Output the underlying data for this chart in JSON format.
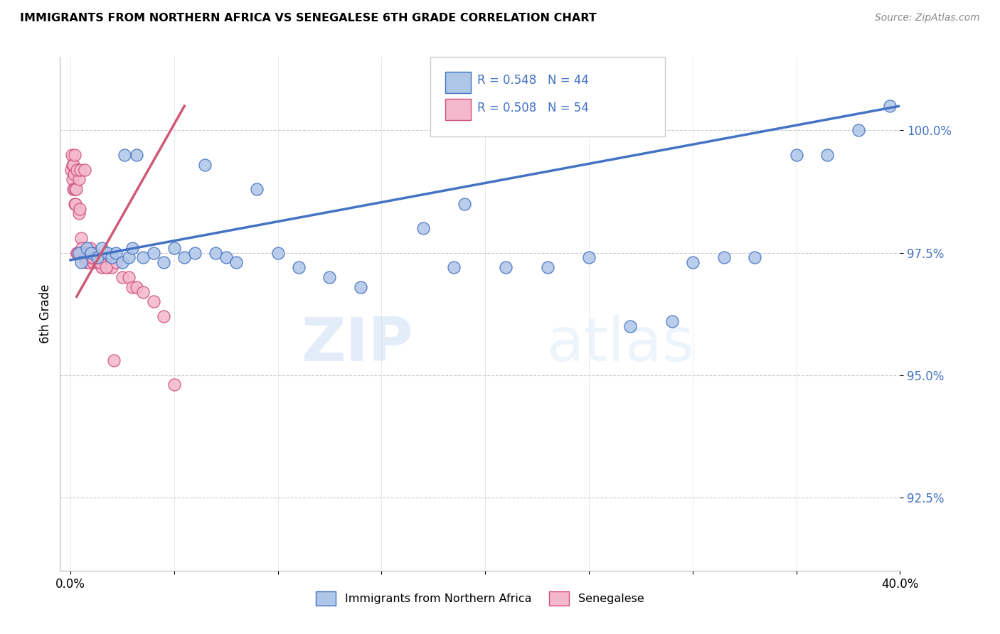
{
  "title": "IMMIGRANTS FROM NORTHERN AFRICA VS SENEGALESE 6TH GRADE CORRELATION CHART",
  "source": "Source: ZipAtlas.com",
  "ylabel": "6th Grade",
  "xlim": [
    -0.5,
    40.0
  ],
  "ylim": [
    91.0,
    101.5
  ],
  "yticks": [
    92.5,
    95.0,
    97.5,
    100.0
  ],
  "ytick_labels": [
    "92.5%",
    "95.0%",
    "97.5%",
    "100.0%"
  ],
  "xtick_positions": [
    0.0,
    5.0,
    10.0,
    15.0,
    20.0,
    25.0,
    30.0,
    35.0,
    40.0
  ],
  "xtick_labels": [
    "0.0%",
    "",
    "",
    "",
    "",
    "",
    "",
    "",
    "40.0%"
  ],
  "blue_R": 0.548,
  "blue_N": 44,
  "pink_R": 0.508,
  "pink_N": 54,
  "blue_color": "#aec6e8",
  "pink_color": "#f4b8cc",
  "blue_edge_color": "#4472c4",
  "pink_edge_color": "#d05080",
  "blue_line_color": "#4472c4",
  "pink_line_color": "#d05878",
  "legend_label_blue": "Immigrants from Northern Africa",
  "legend_label_pink": "Senegalese",
  "watermark_zip": "ZIP",
  "watermark_atlas": "atlas",
  "blue_trend_x0": 0.0,
  "blue_trend_y0": 97.35,
  "blue_trend_x1": 40.0,
  "blue_trend_y1": 100.5,
  "pink_trend_x0": 0.3,
  "pink_trend_y0": 96.6,
  "pink_trend_x1": 5.5,
  "pink_trend_y1": 100.5,
  "blue_scatter_x": [
    0.4,
    0.5,
    0.8,
    1.0,
    1.3,
    1.5,
    1.8,
    2.0,
    2.2,
    2.5,
    2.8,
    3.0,
    3.5,
    4.0,
    4.5,
    5.0,
    5.5,
    6.0,
    7.0,
    7.5,
    8.0,
    9.0,
    10.0,
    11.0,
    12.5,
    14.0,
    17.0,
    18.5,
    19.0,
    21.0,
    23.0,
    25.0,
    27.0,
    29.0,
    30.0,
    31.5,
    33.0,
    35.0,
    36.5,
    38.0,
    39.5,
    6.5,
    3.2,
    2.6
  ],
  "blue_scatter_y": [
    97.5,
    97.3,
    97.6,
    97.5,
    97.4,
    97.6,
    97.5,
    97.4,
    97.5,
    97.3,
    97.4,
    97.6,
    97.4,
    97.5,
    97.3,
    97.6,
    97.4,
    97.5,
    97.5,
    97.4,
    97.3,
    98.8,
    97.5,
    97.2,
    97.0,
    96.8,
    98.0,
    97.2,
    98.5,
    97.2,
    97.2,
    97.4,
    96.0,
    96.1,
    97.3,
    97.4,
    97.4,
    99.5,
    99.5,
    100.0,
    100.5,
    99.3,
    99.5,
    99.5
  ],
  "pink_scatter_x": [
    0.05,
    0.08,
    0.1,
    0.12,
    0.15,
    0.18,
    0.2,
    0.22,
    0.25,
    0.28,
    0.3,
    0.35,
    0.4,
    0.42,
    0.45,
    0.5,
    0.55,
    0.6,
    0.65,
    0.7,
    0.75,
    0.8,
    0.85,
    0.9,
    0.95,
    1.0,
    1.1,
    1.2,
    1.3,
    1.5,
    1.6,
    1.8,
    2.0,
    2.2,
    2.5,
    2.8,
    3.0,
    3.2,
    3.5,
    4.0,
    4.5,
    5.0,
    0.13,
    0.32,
    0.22,
    0.48,
    0.68,
    0.78,
    0.88,
    1.05,
    1.15,
    1.4,
    1.7,
    2.1
  ],
  "pink_scatter_y": [
    99.2,
    99.5,
    99.0,
    99.3,
    98.8,
    99.1,
    98.5,
    98.8,
    98.5,
    98.8,
    97.5,
    97.5,
    99.0,
    98.3,
    98.4,
    97.8,
    97.6,
    97.5,
    97.4,
    97.4,
    97.3,
    97.5,
    97.4,
    97.3,
    97.6,
    97.4,
    97.3,
    97.4,
    97.3,
    97.2,
    97.3,
    97.2,
    97.2,
    97.3,
    97.0,
    97.0,
    96.8,
    96.8,
    96.7,
    96.5,
    96.2,
    94.8,
    99.3,
    99.2,
    99.5,
    99.2,
    99.2,
    97.4,
    97.5,
    97.4,
    97.5,
    97.3,
    97.2,
    95.3
  ]
}
